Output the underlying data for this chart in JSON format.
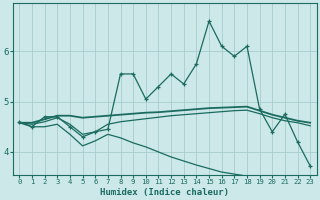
{
  "xlabel": "Humidex (Indice chaleur)",
  "bg_color": "#cce8e8",
  "grid_color": "#a8cccc",
  "line_color": "#1a6b60",
  "xlim": [
    -0.5,
    23.5
  ],
  "ylim": [
    3.55,
    6.95
  ],
  "yticks": [
    4,
    5,
    6
  ],
  "xticks": [
    0,
    1,
    2,
    3,
    4,
    5,
    6,
    7,
    8,
    9,
    10,
    11,
    12,
    13,
    14,
    15,
    16,
    17,
    18,
    19,
    20,
    21,
    22,
    23
  ],
  "line1_x": [
    0,
    1,
    2,
    3,
    4,
    5,
    6,
    7,
    8,
    9,
    10,
    11,
    12,
    13,
    14,
    15,
    16,
    17,
    18,
    19,
    20,
    21,
    22,
    23
  ],
  "line1_y": [
    4.6,
    4.5,
    4.7,
    4.7,
    4.5,
    4.3,
    4.4,
    4.45,
    5.55,
    5.55,
    5.05,
    5.3,
    5.55,
    5.35,
    5.75,
    6.6,
    6.1,
    5.9,
    6.1,
    4.85,
    4.4,
    4.75,
    4.2,
    3.72
  ],
  "line2_x": [
    0,
    1,
    2,
    3,
    4,
    5,
    6,
    7,
    8,
    9,
    10,
    11,
    12,
    13,
    14,
    15,
    16,
    17,
    18,
    19,
    20,
    21,
    22,
    23
  ],
  "line2_y": [
    4.58,
    4.58,
    4.65,
    4.72,
    4.72,
    4.68,
    4.7,
    4.72,
    4.74,
    4.76,
    4.78,
    4.79,
    4.81,
    4.83,
    4.85,
    4.87,
    4.88,
    4.89,
    4.9,
    4.82,
    4.74,
    4.68,
    4.62,
    4.58
  ],
  "line3_x": [
    0,
    1,
    2,
    3,
    4,
    5,
    6,
    7,
    8,
    9,
    10,
    11,
    12,
    13,
    14,
    15,
    16,
    17,
    18,
    19,
    20,
    21,
    22,
    23
  ],
  "line3_y": [
    4.58,
    4.55,
    4.6,
    4.68,
    4.55,
    4.35,
    4.4,
    4.55,
    4.6,
    4.63,
    4.66,
    4.69,
    4.72,
    4.74,
    4.76,
    4.78,
    4.8,
    4.82,
    4.83,
    4.76,
    4.68,
    4.62,
    4.58,
    4.52
  ],
  "line4_x": [
    0,
    1,
    2,
    3,
    4,
    5,
    6,
    7,
    8,
    9,
    10,
    11,
    12,
    13,
    14,
    15,
    16,
    17,
    18,
    19,
    20,
    21,
    22,
    23
  ],
  "line4_y": [
    4.58,
    4.5,
    4.5,
    4.55,
    4.35,
    4.12,
    4.22,
    4.35,
    4.28,
    4.18,
    4.1,
    4.0,
    3.9,
    3.82,
    3.74,
    3.67,
    3.6,
    3.56,
    3.52,
    3.48,
    3.46,
    3.43,
    3.4,
    3.38
  ]
}
